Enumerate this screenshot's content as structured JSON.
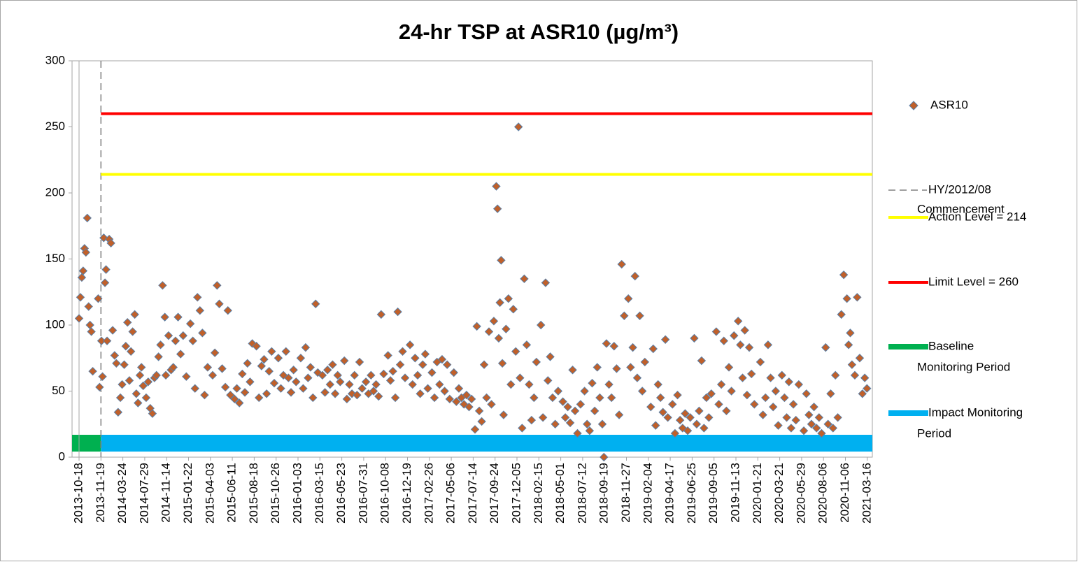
{
  "chart_data": {
    "type": "scatter",
    "title": "24-hr TSP at ASR10 (µg/m³)",
    "ylim": [
      0,
      300
    ],
    "yticks": [
      0,
      50,
      100,
      150,
      200,
      250,
      300
    ],
    "xticks": [
      "2013-10-18",
      "2013-11-19",
      "2014-03-24",
      "2014-07-29",
      "2014-11-14",
      "2015-01-22",
      "2015-04-03",
      "2015-06-11",
      "2015-08-18",
      "2015-10-26",
      "2016-01-03",
      "2016-03-15",
      "2016-05-23",
      "2016-07-31",
      "2016-10-08",
      "2016-12-19",
      "2017-02-26",
      "2017-05-06",
      "2017-07-14",
      "2017-09-24",
      "2017-12-05",
      "2018-02-15",
      "2018-05-01",
      "2018-07-12",
      "2018-09-19",
      "2018-11-27",
      "2019-02-04",
      "2019-04-17",
      "2019-06-25",
      "2019-09-05",
      "2019-11-13",
      "2020-01-21",
      "2020-03-21",
      "2020-05-29",
      "2020-08-06",
      "2020-11-06",
      "2021-03-16"
    ],
    "series": [
      {
        "name": "ASR10",
        "color": "#c0602a",
        "edge": "#5b7fa6",
        "x": [
          "2013-10-18",
          "2013-10-20",
          "2013-10-22",
          "2013-10-24",
          "2013-10-26",
          "2013-10-28",
          "2013-10-30",
          "2013-11-01",
          "2013-11-03",
          "2013-11-05",
          "2013-11-07",
          "2013-11-15",
          "2013-11-17",
          "2013-11-22",
          "2013-11-28",
          "2013-12-05",
          "2013-12-12",
          "2013-12-18",
          "2013-12-24",
          "2014-01-05",
          "2014-01-15",
          "2014-01-25",
          "2014-02-05",
          "2014-02-15",
          "2014-02-25",
          "2014-03-10",
          "2014-03-20",
          "2014-04-01",
          "2014-04-10",
          "2014-04-20",
          "2014-05-01",
          "2014-05-10",
          "2014-05-20",
          "2014-06-01",
          "2014-06-10",
          "2014-06-20",
          "2014-07-01",
          "2014-07-10",
          "2014-07-20",
          "2014-08-05",
          "2014-08-15",
          "2014-08-25",
          "2014-09-05",
          "2014-09-15",
          "2014-09-25",
          "2014-10-05",
          "2014-10-15",
          "2014-10-25",
          "2014-11-05",
          "2014-11-10",
          "2014-11-20",
          "2014-11-28",
          "2014-12-05",
          "2014-12-12",
          "2014-12-20",
          "2014-12-28",
          "2015-01-05",
          "2015-01-15",
          "2015-01-28",
          "2015-02-05",
          "2015-02-12",
          "2015-02-20",
          "2015-02-28",
          "2015-03-08",
          "2015-03-15",
          "2015-03-25",
          "2015-04-10",
          "2015-04-17",
          "2015-04-24",
          "2015-05-01",
          "2015-05-10",
          "2015-05-20",
          "2015-05-28",
          "2015-06-05",
          "2015-06-18",
          "2015-06-25",
          "2015-07-03",
          "2015-07-12",
          "2015-07-20",
          "2015-07-28",
          "2015-08-05",
          "2015-08-12",
          "2015-08-25",
          "2015-09-02",
          "2015-09-10",
          "2015-09-18",
          "2015-09-26",
          "2015-10-04",
          "2015-10-12",
          "2015-10-20",
          "2015-11-02",
          "2015-11-10",
          "2015-11-18",
          "2015-11-26",
          "2015-12-04",
          "2015-12-12",
          "2015-12-20",
          "2015-12-28",
          "2016-01-12",
          "2016-01-20",
          "2016-01-28",
          "2016-02-05",
          "2016-02-13",
          "2016-02-21",
          "2016-03-01",
          "2016-03-08",
          "2016-03-23",
          "2016-03-31",
          "2016-04-08",
          "2016-04-16",
          "2016-04-24",
          "2016-05-02",
          "2016-05-10",
          "2016-05-18",
          "2016-05-31",
          "2016-06-08",
          "2016-06-16",
          "2016-06-24",
          "2016-07-02",
          "2016-07-10",
          "2016-07-18",
          "2016-07-26",
          "2016-08-07",
          "2016-08-15",
          "2016-08-23",
          "2016-08-31",
          "2016-09-08",
          "2016-09-16",
          "2016-09-24",
          "2016-10-02",
          "2016-10-16",
          "2016-10-24",
          "2016-11-01",
          "2016-11-09",
          "2016-11-17",
          "2016-11-25",
          "2016-12-03",
          "2016-12-11",
          "2016-12-27",
          "2017-01-04",
          "2017-01-12",
          "2017-01-20",
          "2017-01-28",
          "2017-02-05",
          "2017-02-13",
          "2017-02-21",
          "2017-03-06",
          "2017-03-14",
          "2017-03-22",
          "2017-03-30",
          "2017-04-07",
          "2017-04-15",
          "2017-04-23",
          "2017-05-01",
          "2017-05-14",
          "2017-05-22",
          "2017-05-30",
          "2017-06-07",
          "2017-06-15",
          "2017-06-23",
          "2017-07-01",
          "2017-07-09",
          "2017-07-20",
          "2017-07-26",
          "2017-08-03",
          "2017-08-11",
          "2017-08-19",
          "2017-08-27",
          "2017-09-04",
          "2017-09-12",
          "2017-09-20",
          "2017-09-28",
          "2017-10-02",
          "2017-10-06",
          "2017-10-10",
          "2017-10-14",
          "2017-10-18",
          "2017-10-22",
          "2017-10-30",
          "2017-11-07",
          "2017-11-15",
          "2017-11-23",
          "2017-12-01",
          "2017-12-10",
          "2017-12-15",
          "2017-12-22",
          "2017-12-29",
          "2018-01-06",
          "2018-01-14",
          "2018-01-22",
          "2018-01-30",
          "2018-02-07",
          "2018-02-22",
          "2018-03-01",
          "2018-03-10",
          "2018-03-18",
          "2018-03-26",
          "2018-04-03",
          "2018-04-12",
          "2018-04-22",
          "2018-05-08",
          "2018-05-16",
          "2018-05-24",
          "2018-06-01",
          "2018-06-09",
          "2018-06-17",
          "2018-06-25",
          "2018-07-05",
          "2018-07-18",
          "2018-07-26",
          "2018-08-03",
          "2018-08-11",
          "2018-08-19",
          "2018-08-27",
          "2018-09-04",
          "2018-09-12",
          "2018-09-17",
          "2018-09-25",
          "2018-10-03",
          "2018-10-11",
          "2018-10-19",
          "2018-10-27",
          "2018-11-04",
          "2018-11-12",
          "2018-11-20",
          "2018-12-03",
          "2018-12-10",
          "2018-12-17",
          "2018-12-24",
          "2018-12-31",
          "2019-01-08",
          "2019-01-16",
          "2019-01-24",
          "2019-02-12",
          "2019-02-20",
          "2019-02-28",
          "2019-03-08",
          "2019-03-16",
          "2019-03-24",
          "2019-04-01",
          "2019-04-09",
          "2019-04-24",
          "2019-05-02",
          "2019-05-10",
          "2019-05-18",
          "2019-05-26",
          "2019-06-03",
          "2019-06-11",
          "2019-06-19",
          "2019-07-02",
          "2019-07-10",
          "2019-07-18",
          "2019-07-26",
          "2019-08-03",
          "2019-08-11",
          "2019-08-19",
          "2019-08-27",
          "2019-09-12",
          "2019-09-20",
          "2019-09-28",
          "2019-10-06",
          "2019-10-14",
          "2019-10-22",
          "2019-10-30",
          "2019-11-07",
          "2019-11-20",
          "2019-11-27",
          "2019-12-04",
          "2019-12-11",
          "2019-12-18",
          "2019-12-25",
          "2020-01-01",
          "2020-01-10",
          "2020-01-28",
          "2020-02-04",
          "2020-02-11",
          "2020-02-18",
          "2020-02-25",
          "2020-03-03",
          "2020-03-10",
          "2020-03-17",
          "2020-03-28",
          "2020-04-05",
          "2020-04-12",
          "2020-04-19",
          "2020-04-26",
          "2020-05-03",
          "2020-05-11",
          "2020-05-20",
          "2020-06-05",
          "2020-06-13",
          "2020-06-21",
          "2020-06-29",
          "2020-07-07",
          "2020-07-15",
          "2020-07-23",
          "2020-07-31",
          "2020-08-15",
          "2020-08-25",
          "2020-09-05",
          "2020-09-15",
          "2020-09-25",
          "2020-10-05",
          "2020-10-20",
          "2020-10-30",
          "2020-11-15",
          "2020-11-25",
          "2020-12-05",
          "2020-12-15",
          "2021-01-01",
          "2021-01-15",
          "2021-01-30",
          "2021-02-15",
          "2021-03-01",
          "2021-03-14"
        ],
        "values": [
          105,
          121,
          136,
          141,
          158,
          155,
          181,
          114,
          100,
          95,
          65,
          120,
          53,
          88,
          61,
          166,
          132,
          142,
          88,
          165,
          162,
          96,
          77,
          71,
          34,
          45,
          55,
          70,
          84,
          102,
          58,
          80,
          95,
          108,
          48,
          41,
          62,
          68,
          54,
          45,
          57,
          37,
          33,
          60,
          62,
          76,
          85,
          130,
          106,
          62,
          92,
          66,
          68,
          88,
          106,
          78,
          92,
          61,
          101,
          88,
          52,
          121,
          111,
          94,
          47,
          68,
          62,
          79,
          130,
          116,
          67,
          53,
          111,
          47,
          44,
          52,
          41,
          63,
          49,
          71,
          57,
          86,
          84,
          45,
          69,
          74,
          48,
          65,
          80,
          56,
          75,
          52,
          62,
          80,
          60,
          49,
          66,
          57,
          75,
          52,
          83,
          60,
          68,
          45,
          116,
          64,
          62,
          49,
          66,
          55,
          70,
          48,
          62,
          57,
          73,
          44,
          55,
          48,
          62,
          47,
          72,
          52,
          57,
          48,
          62,
          50,
          55,
          46,
          108,
          63,
          77,
          58,
          65,
          45,
          110,
          70,
          80,
          60,
          85,
          55,
          75,
          62,
          48,
          70,
          78,
          52,
          64,
          45,
          72,
          55,
          74,
          50,
          70,
          44,
          64,
          42,
          52,
          45,
          40,
          47,
          38,
          44,
          21,
          99,
          35,
          27,
          70,
          45,
          95,
          40,
          103,
          205,
          188,
          90,
          117,
          149,
          71,
          32,
          97,
          120,
          55,
          112,
          80,
          250,
          60,
          22,
          135,
          85,
          55,
          28,
          45,
          72,
          100,
          30,
          132,
          58,
          76,
          45,
          25,
          50,
          42,
          30,
          38,
          26,
          66,
          35,
          18,
          40,
          50,
          25,
          20,
          56,
          35,
          68,
          45,
          25,
          0,
          86,
          55,
          45,
          84,
          67,
          32,
          146,
          107,
          120,
          68,
          83,
          137,
          60,
          107,
          50,
          72,
          38,
          82,
          24,
          55,
          45,
          34,
          89,
          30,
          40,
          18,
          47,
          28,
          22,
          33,
          20,
          30,
          90,
          25,
          35,
          73,
          22,
          45,
          30,
          48,
          95,
          40,
          55,
          88,
          35,
          68,
          50,
          92,
          103,
          85,
          60,
          96,
          47,
          83,
          63,
          40,
          72,
          32,
          45,
          85,
          60,
          38,
          50,
          24,
          62,
          45,
          30,
          57,
          22,
          40,
          28,
          55,
          20,
          48,
          32,
          25,
          38,
          22,
          30,
          18,
          83,
          25,
          48,
          22,
          62,
          30,
          108,
          138,
          120,
          85,
          94,
          70,
          62,
          121,
          75,
          48,
          60,
          52
        ]
      }
    ],
    "commencement": {
      "x": "2013-11-19",
      "name": [
        "HY/2012/08",
        "Commencement"
      ],
      "color": "#808080"
    },
    "levels": [
      {
        "name": "Action Level = 214",
        "value": 214,
        "color": "#ffff00"
      },
      {
        "name": "Limit Level = 260",
        "value": 260,
        "color": "#ff0000"
      }
    ],
    "periods": [
      {
        "name": [
          "Baseline",
          "Monitoring Period"
        ],
        "end": "2013-11-19",
        "color": "#00b050"
      },
      {
        "name": [
          "Impact Monitoring",
          "Period"
        ],
        "start": "2013-11-19",
        "color": "#00b0f0"
      }
    ]
  }
}
